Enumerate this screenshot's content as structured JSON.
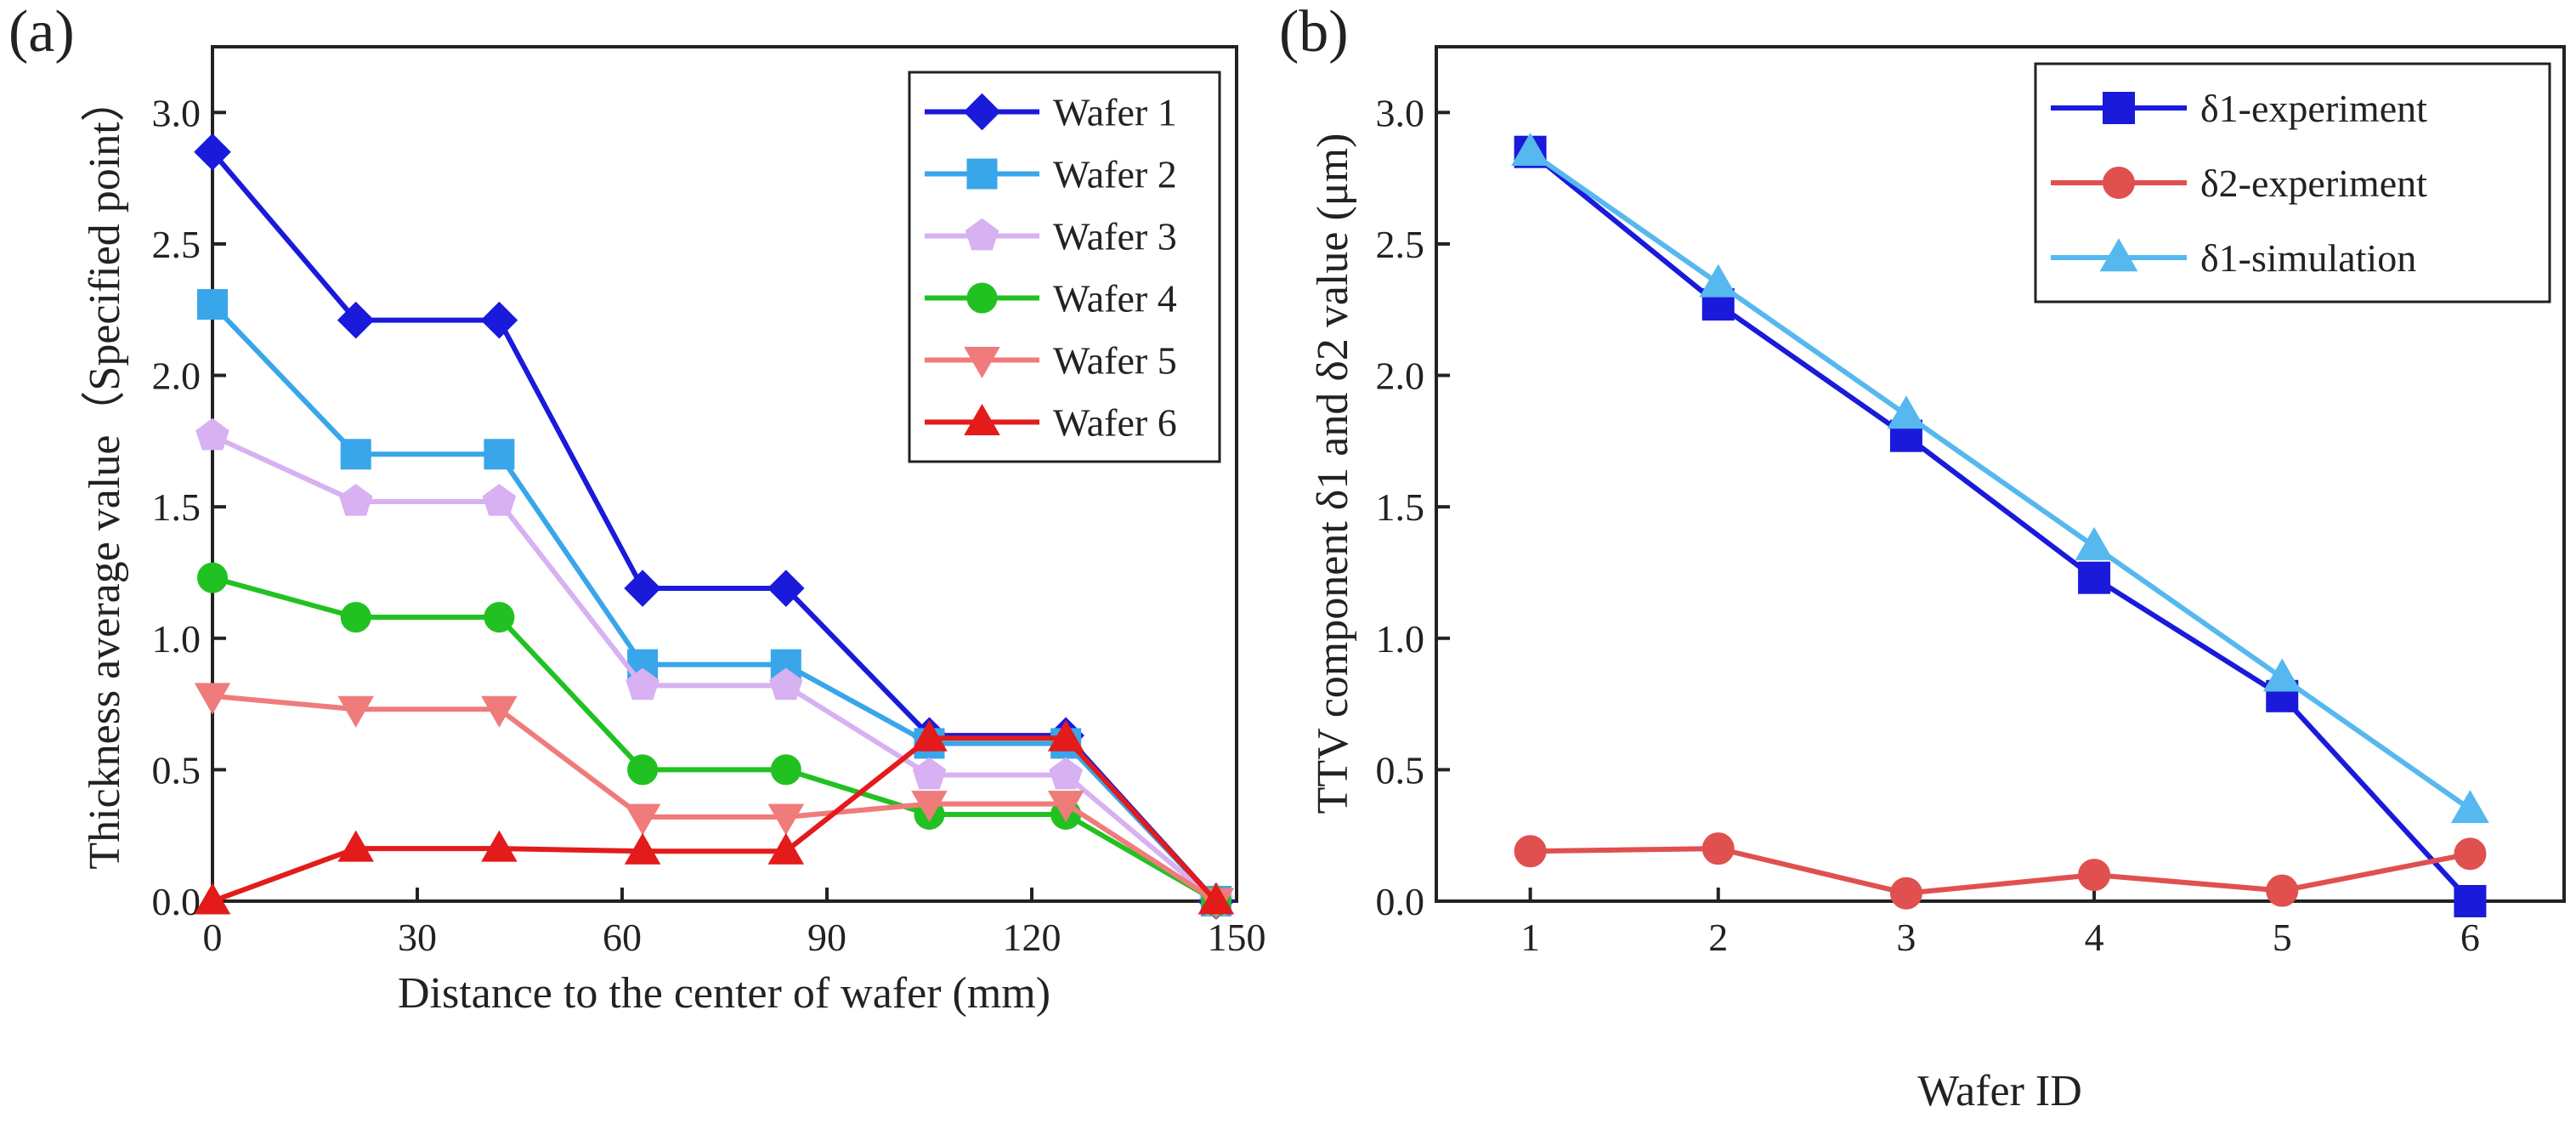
{
  "chart_data": [
    {
      "type": "line",
      "panel_label": "(a)",
      "xlabel": "Distance to the center of wafer (mm)",
      "ylabel": "Thickness average value（Specified point）",
      "xlim": [
        0,
        150
      ],
      "ylim": [
        0,
        3.25
      ],
      "xticks": [
        0,
        30,
        60,
        90,
        120,
        150
      ],
      "xtick_labels": [
        "0",
        "30",
        "60",
        "90",
        "120",
        "150"
      ],
      "yticks": [
        0,
        0.5,
        1.0,
        1.5,
        2.0,
        2.5,
        3.0
      ],
      "ytick_labels": [
        "0.0",
        "0.5",
        "1.0",
        "1.5",
        "2.0",
        "2.5",
        "3.0"
      ],
      "legend_position": "top-right",
      "x": [
        0,
        21,
        42,
        63,
        84,
        105,
        125,
        147
      ],
      "series": [
        {
          "name": "Wafer 1",
          "color": "#1a1adb",
          "marker": "diamond",
          "values": [
            2.85,
            2.21,
            2.21,
            1.19,
            1.19,
            0.63,
            0.63,
            0.0
          ]
        },
        {
          "name": "Wafer 2",
          "color": "#39a6ea",
          "marker": "square",
          "values": [
            2.27,
            1.7,
            1.7,
            0.9,
            0.9,
            0.6,
            0.6,
            0.0
          ]
        },
        {
          "name": "Wafer 3",
          "color": "#d7b1f2",
          "marker": "pentagon",
          "values": [
            1.77,
            1.52,
            1.52,
            0.82,
            0.82,
            0.48,
            0.48,
            0.0
          ]
        },
        {
          "name": "Wafer 4",
          "color": "#22c122",
          "marker": "circle",
          "values": [
            1.23,
            1.08,
            1.08,
            0.5,
            0.5,
            0.33,
            0.33,
            0.0
          ]
        },
        {
          "name": "Wafer 5",
          "color": "#f07b7b",
          "marker": "triangle-down",
          "values": [
            0.78,
            0.73,
            0.73,
            0.32,
            0.32,
            0.37,
            0.37,
            0.0
          ]
        },
        {
          "name": "Wafer 6",
          "color": "#e31b1b",
          "marker": "triangle-up",
          "values": [
            0.0,
            0.2,
            0.2,
            0.19,
            0.19,
            0.62,
            0.62,
            0.0
          ]
        }
      ]
    },
    {
      "type": "line",
      "panel_label": "(b)",
      "xlabel": "Wafer ID",
      "ylabel": "TTV component δ1  and δ2 value (μm)",
      "xlim": [
        0.5,
        6.5
      ],
      "ylim": [
        0,
        3.25
      ],
      "xticks": [
        1,
        2,
        3,
        4,
        5,
        6
      ],
      "xtick_labels": [
        "1",
        "2",
        "3",
        "4",
        "5",
        "6"
      ],
      "yticks": [
        0,
        0.5,
        1.0,
        1.5,
        2.0,
        2.5,
        3.0
      ],
      "ytick_labels": [
        "0.0",
        "0.5",
        "1.0",
        "1.5",
        "2.0",
        "2.5",
        "3.0"
      ],
      "legend_position": "top-right",
      "x": [
        1,
        2,
        3,
        4,
        5,
        6
      ],
      "series": [
        {
          "name": "δ1-experiment",
          "color": "#1a1adb",
          "marker": "square",
          "values": [
            2.85,
            2.27,
            1.77,
            1.23,
            0.78,
            0.0
          ]
        },
        {
          "name": "δ2-experiment",
          "color": "#e0504f",
          "marker": "circle",
          "values": [
            0.19,
            0.2,
            0.03,
            0.1,
            0.04,
            0.18
          ]
        },
        {
          "name": "δ1-simulation",
          "color": "#56b8ee",
          "marker": "triangle-up",
          "values": [
            2.85,
            2.35,
            1.85,
            1.35,
            0.85,
            0.35
          ]
        }
      ]
    }
  ]
}
